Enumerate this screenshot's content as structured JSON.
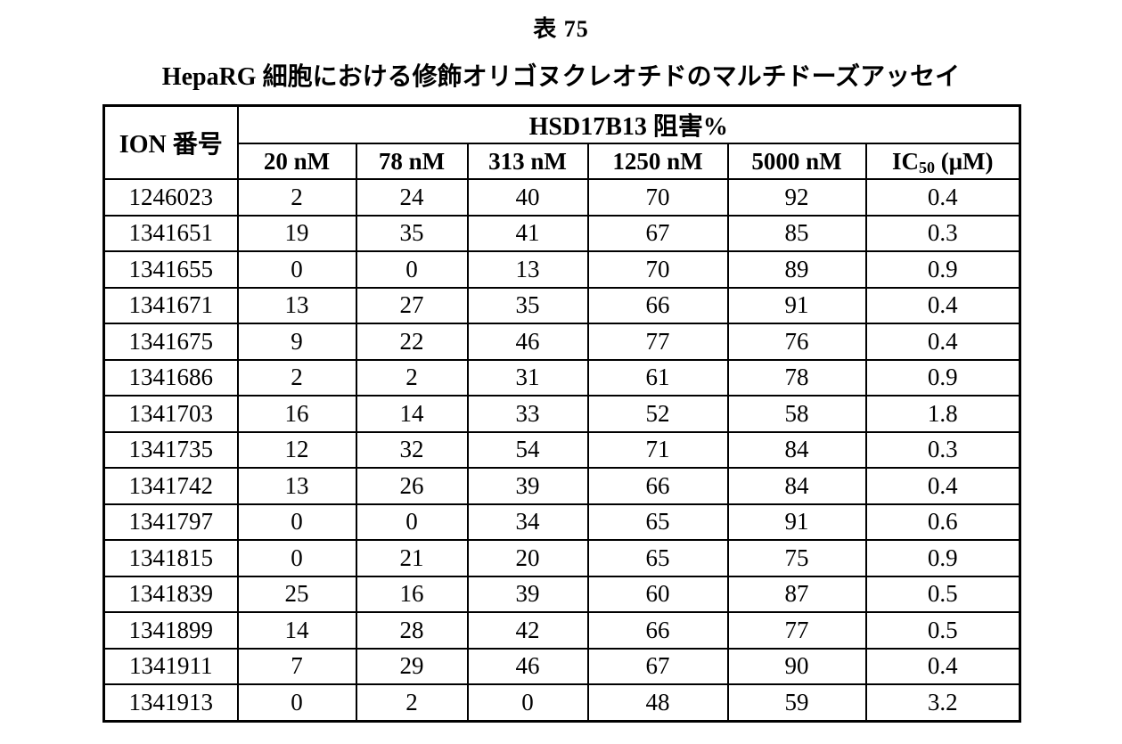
{
  "page": {
    "title": "表 75",
    "subtitle": "HepaRG 細胞における修飾オリゴヌクレオチドのマルチドーズアッセイ"
  },
  "table": {
    "ion_header": "ION 番号",
    "span_header": "HSD17B13 阻害%",
    "conc_headers": [
      "20 nM",
      "78 nM",
      "313 nM",
      "1250 nM",
      "5000 nM"
    ],
    "ic50_header": {
      "base": "IC",
      "sub": "50",
      "unit": " (μM)"
    },
    "rows": [
      [
        "1246023",
        "2",
        "24",
        "40",
        "70",
        "92",
        "0.4"
      ],
      [
        "1341651",
        "19",
        "35",
        "41",
        "67",
        "85",
        "0.3"
      ],
      [
        "1341655",
        "0",
        "0",
        "13",
        "70",
        "89",
        "0.9"
      ],
      [
        "1341671",
        "13",
        "27",
        "35",
        "66",
        "91",
        "0.4"
      ],
      [
        "1341675",
        "9",
        "22",
        "46",
        "77",
        "76",
        "0.4"
      ],
      [
        "1341686",
        "2",
        "2",
        "31",
        "61",
        "78",
        "0.9"
      ],
      [
        "1341703",
        "16",
        "14",
        "33",
        "52",
        "58",
        "1.8"
      ],
      [
        "1341735",
        "12",
        "32",
        "54",
        "71",
        "84",
        "0.3"
      ],
      [
        "1341742",
        "13",
        "26",
        "39",
        "66",
        "84",
        "0.4"
      ],
      [
        "1341797",
        "0",
        "0",
        "34",
        "65",
        "91",
        "0.6"
      ],
      [
        "1341815",
        "0",
        "21",
        "20",
        "65",
        "75",
        "0.9"
      ],
      [
        "1341839",
        "25",
        "16",
        "39",
        "60",
        "87",
        "0.5"
      ],
      [
        "1341899",
        "14",
        "28",
        "42",
        "66",
        "77",
        "0.5"
      ],
      [
        "1341911",
        "7",
        "29",
        "46",
        "67",
        "90",
        "0.4"
      ],
      [
        "1341913",
        "0",
        "2",
        "0",
        "48",
        "59",
        "3.2"
      ]
    ],
    "colors": {
      "border": "#000000",
      "text": "#000000",
      "background": "#ffffff"
    }
  }
}
